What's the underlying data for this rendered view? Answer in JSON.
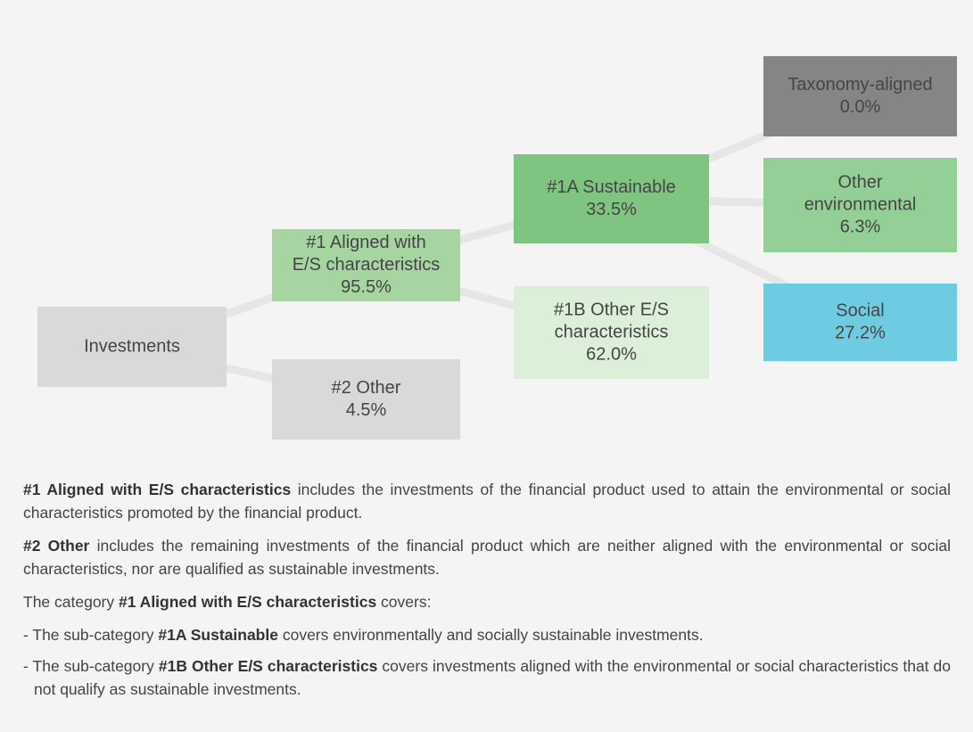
{
  "nodes": [
    {
      "lines": [
        "Investments"
      ]
    },
    {
      "lines": [
        "#1 Aligned with",
        "E/S characteristics",
        "95.5%"
      ]
    },
    {
      "lines": [
        "#2 Other",
        "4.5%"
      ]
    },
    {
      "lines": [
        "#1A Sustainable",
        "33.5%"
      ]
    },
    {
      "lines": [
        "#1B Other E/S",
        "characteristics",
        "62.0%"
      ]
    },
    {
      "lines": [
        "Taxonomy-aligned",
        "0.0%"
      ]
    },
    {
      "lines": [
        "Other",
        "environmental",
        "6.3%"
      ]
    },
    {
      "lines": [
        "Social",
        "27.2%"
      ]
    }
  ],
  "paragraphs": [
    {
      "runs": [
        {
          "text": "#1 Aligned with E/S characteristics",
          "bold": true
        },
        {
          "text": " includes the investments of the financial product used to attain the environmental or social characteristics promoted by the financial product.",
          "bold": false
        }
      ]
    },
    {
      "runs": [
        {
          "text": "#2 Other",
          "bold": true
        },
        {
          "text": " includes the remaining investments of the financial product which are neither aligned with the environmental or social characteristics, nor are qualified as sustainable investments.",
          "bold": false
        }
      ]
    },
    {
      "runs": [
        {
          "text": "The category ",
          "bold": false
        },
        {
          "text": "#1 Aligned with E/S characteristics",
          "bold": true
        },
        {
          "text": " covers:",
          "bold": false
        }
      ]
    },
    {
      "runs": [
        {
          "text": "- The sub-category ",
          "bold": false
        },
        {
          "text": "#1A Sustainable",
          "bold": true
        },
        {
          "text": " covers environmentally and socially sustainable investments.",
          "bold": false
        }
      ]
    },
    {
      "runs": [
        {
          "text": "- The sub-category ",
          "bold": false
        },
        {
          "text": "#1B Other E/S characteristics",
          "bold": true
        },
        {
          "text": " covers investments aligned with the environmental or social characteristics that do not qualify as sustainable investments.",
          "bold": false
        }
      ]
    }
  ]
}
